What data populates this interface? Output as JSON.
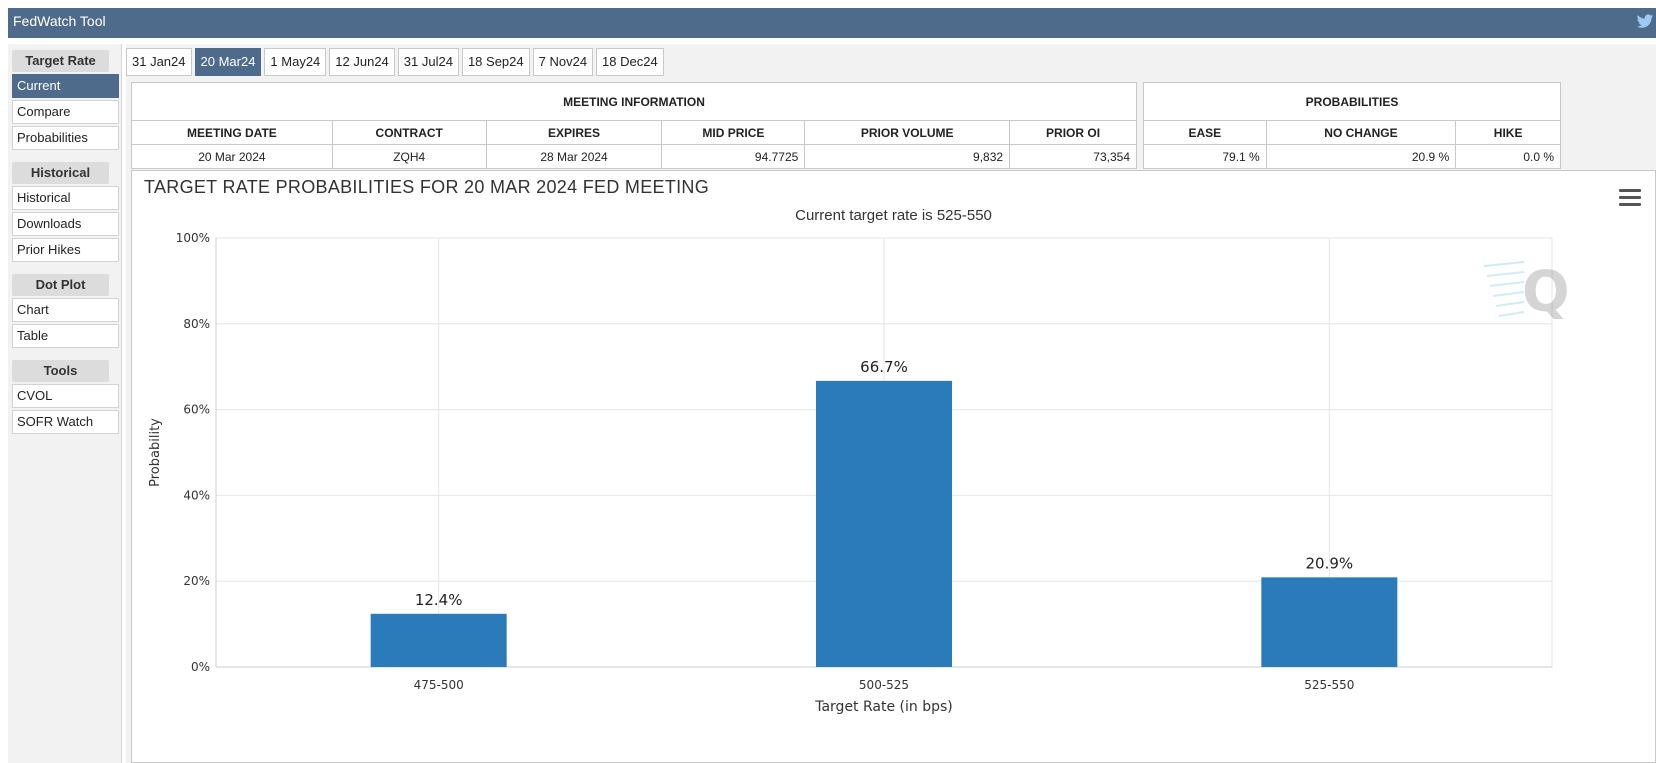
{
  "app": {
    "title": "FedWatch Tool"
  },
  "sidebar": {
    "groups": [
      {
        "label": "Target Rate",
        "items": [
          "Current",
          "Compare",
          "Probabilities"
        ]
      },
      {
        "label": "Historical",
        "items": [
          "Historical",
          "Downloads",
          "Prior Hikes"
        ]
      },
      {
        "label": "Dot Plot",
        "items": [
          "Chart",
          "Table"
        ]
      },
      {
        "label": "Tools",
        "items": [
          "CVOL",
          "SOFR Watch"
        ]
      }
    ],
    "active_item": "Current"
  },
  "tabs": [
    "31 Jan24",
    "20 Mar24",
    "1 May24",
    "12 Jun24",
    "31 Jul24",
    "18 Sep24",
    "7 Nov24",
    "18 Dec24"
  ],
  "active_tab": "20 Mar24",
  "meeting_info": {
    "heading": "MEETING INFORMATION",
    "columns": [
      "MEETING DATE",
      "CONTRACT",
      "EXPIRES",
      "MID PRICE",
      "PRIOR VOLUME",
      "PRIOR OI"
    ],
    "values": [
      "20 Mar 2024",
      "ZQH4",
      "28 Mar 2024",
      "94.7725",
      "9,832",
      "73,354"
    ]
  },
  "probabilities": {
    "heading": "PROBABILITIES",
    "columns": [
      "EASE",
      "NO CHANGE",
      "HIKE"
    ],
    "values": [
      "79.1 %",
      "20.9 %",
      "0.0 %"
    ]
  },
  "chart_data": {
    "type": "bar",
    "title": "TARGET RATE PROBABILITIES FOR 20 MAR 2024 FED MEETING",
    "subtitle": "Current target rate is 525-550",
    "xlabel": "Target Rate (in bps)",
    "ylabel": "Probability",
    "categories": [
      "475-500",
      "500-525",
      "525-550"
    ],
    "values": [
      12.4,
      66.7,
      20.9
    ],
    "data_labels": [
      "12.4%",
      "66.7%",
      "20.9%"
    ],
    "ylim": [
      0,
      100
    ],
    "yticks": [
      "0%",
      "20%",
      "40%",
      "60%",
      "80%",
      "100%"
    ],
    "grid": true,
    "bar_color": "#2b7bba"
  },
  "colors": {
    "header": "#4f6b8b",
    "active": "#4f6b8b"
  },
  "icons": {
    "twitter": "twitter-icon",
    "menu": "hamburger-menu-icon",
    "watermark": "q-logo-watermark"
  }
}
